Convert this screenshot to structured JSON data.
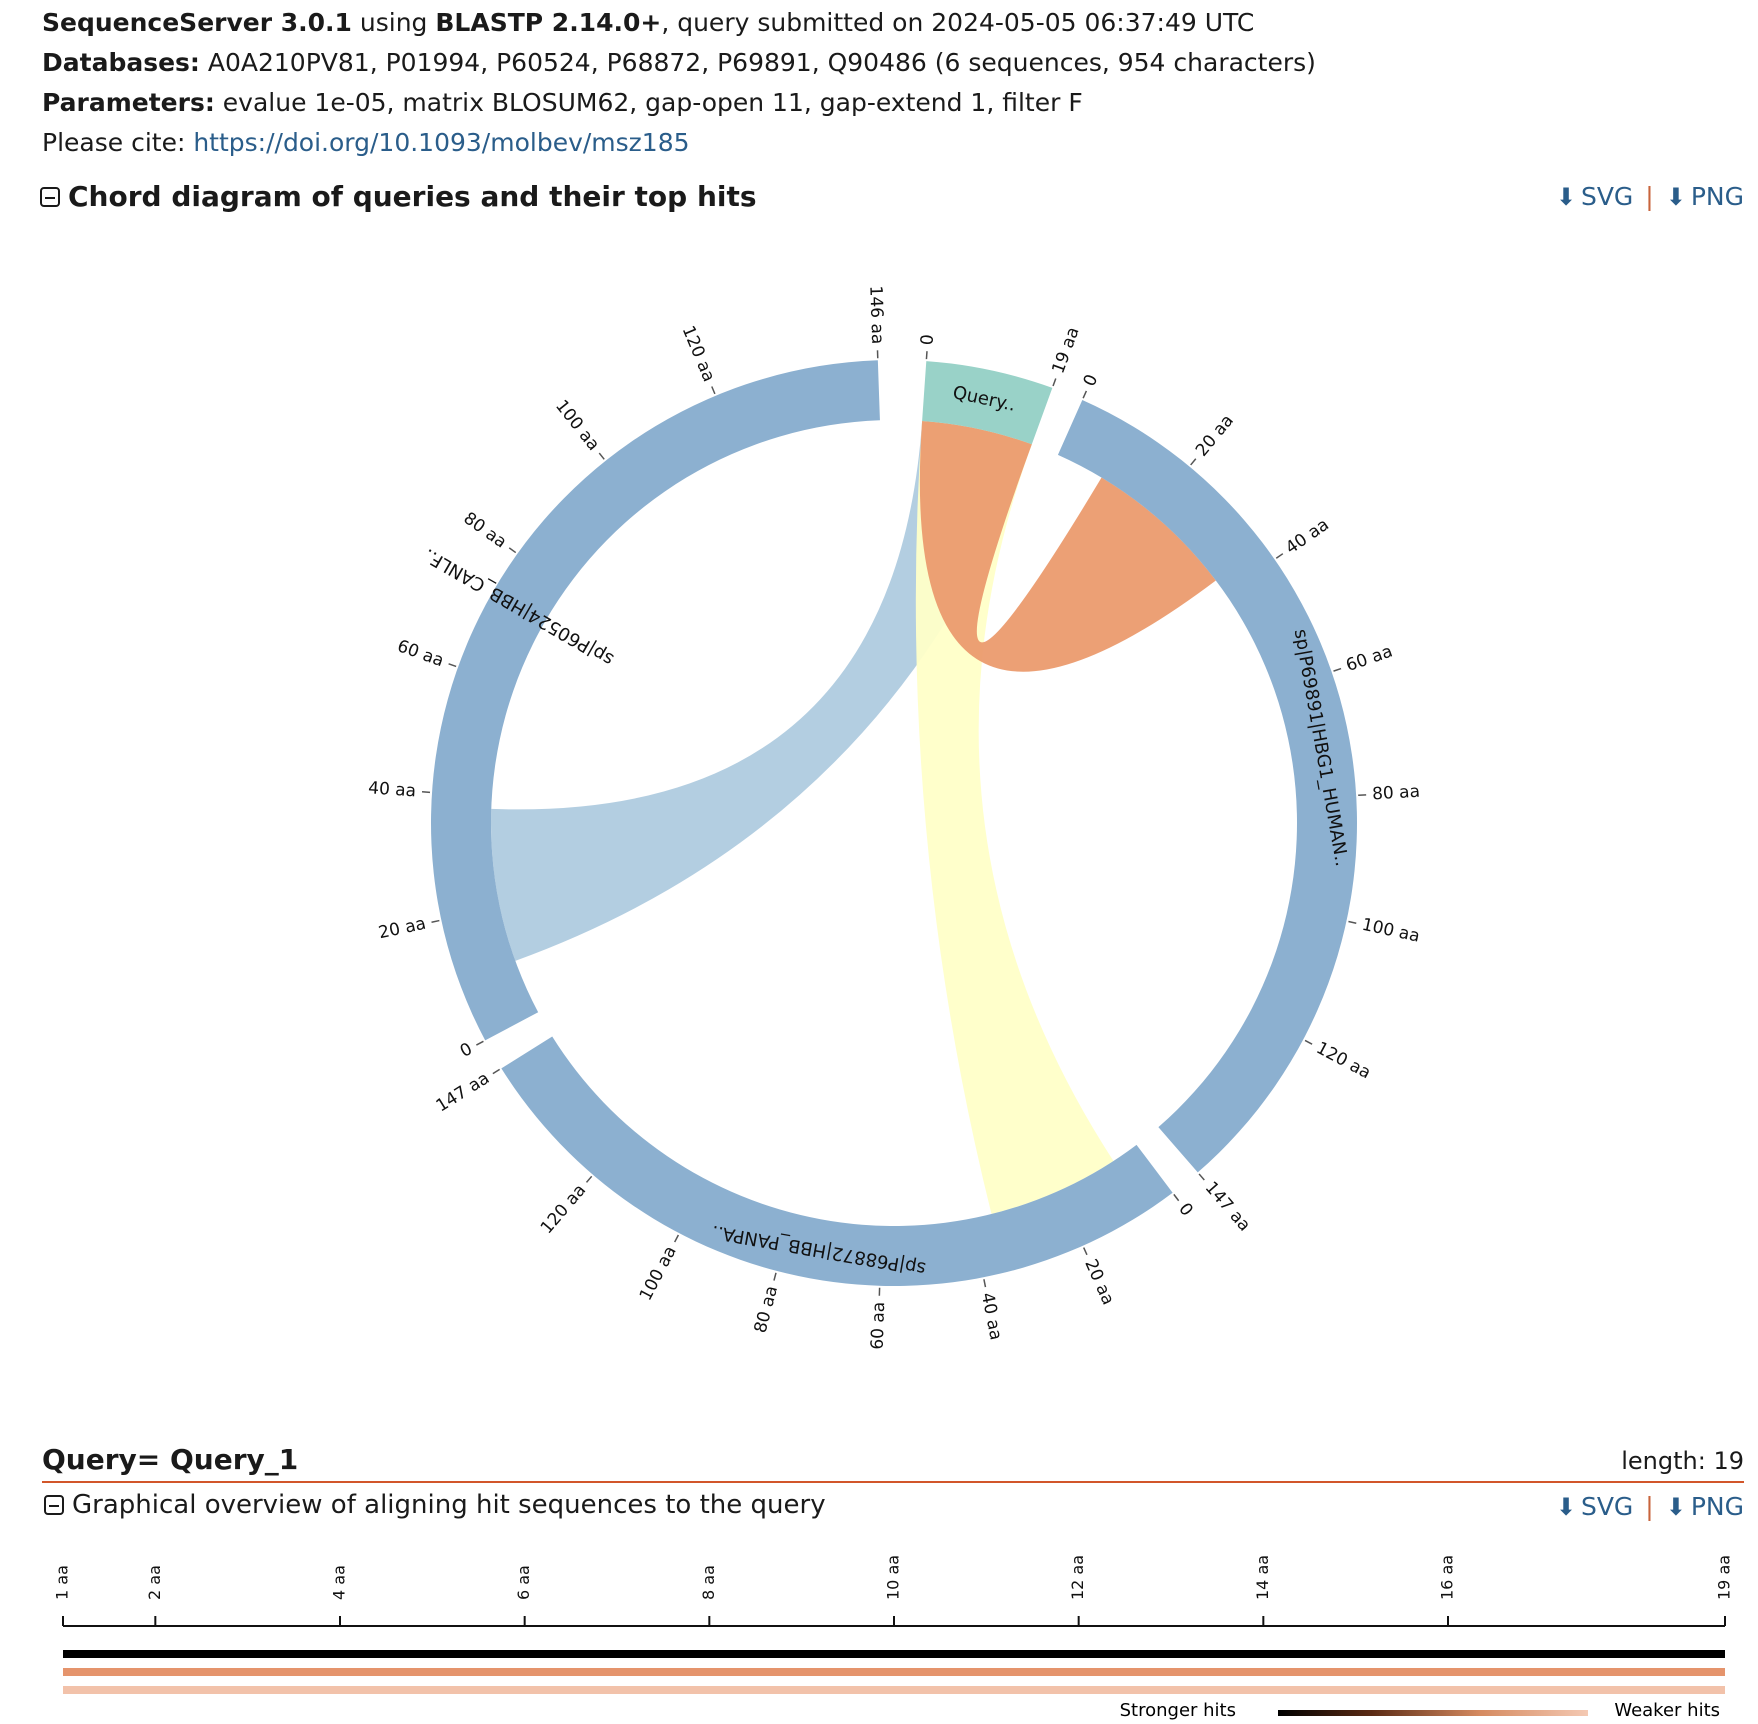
{
  "header": {
    "app_name": "SequenceServer 3.0.1",
    "using_word": "using",
    "program": "BLASTP 2.14.0+",
    "submitted_text": ", query submitted on 2024-05-05 06:37:49 UTC",
    "databases_label": "Databases:",
    "databases_value": "A0A210PV81, P01994, P60524, P68872, P69891, Q90486 (6 sequences, 954 characters)",
    "parameters_label": "Parameters:",
    "parameters_value": "evalue 1e-05, matrix BLOSUM62, gap-open 11, gap-extend 1, filter F",
    "cite_label": "Please cite:",
    "cite_link": "https://doi.org/10.1093/molbev/msz185"
  },
  "chord_section": {
    "title": "Chord diagram of queries and their top hits",
    "svg_label": "SVG",
    "png_label": "PNG",
    "separator": "|",
    "arcs": [
      {
        "label": "Query..",
        "length": 19,
        "color": "#99d2c8"
      },
      {
        "label": "sp|P69891|HBG1_HUMAN..",
        "length": 147,
        "color": "#8cb0d0"
      },
      {
        "label": "sp|P68872|HBB_PANPA..",
        "length": 147,
        "color": "#8cb0d0"
      },
      {
        "label": "sp|P60524|HBB_CANLF..",
        "length": 146,
        "color": "#8cb0d0"
      }
    ],
    "chords": [
      {
        "color": "#eb9b6e",
        "target": 1
      },
      {
        "color": "#ffffc8",
        "target": 2
      },
      {
        "color": "#a6c5dc",
        "target": 3
      }
    ],
    "ticks": {
      "query": [
        "0",
        "19 aa"
      ],
      "hbg1": [
        "0",
        "20 aa",
        "40 aa",
        "60 aa",
        "80 aa",
        "100 aa",
        "120 aa",
        "147 aa"
      ],
      "hbb_panpa": [
        "0",
        "20 aa",
        "40 aa",
        "60 aa",
        "80 aa",
        "100 aa",
        "120 aa",
        "147 aa"
      ],
      "hbb_canlf": [
        "0",
        "20 aa",
        "40 aa",
        "60 aa",
        "80 aa",
        "100 aa",
        "120 aa",
        "146 aa"
      ]
    }
  },
  "query": {
    "title": "Query= Query_1",
    "length_text": "length: 19"
  },
  "overview": {
    "title": "Graphical overview of aligning hit sequences to the query",
    "svg_label": "SVG",
    "png_label": "PNG",
    "separator": "|",
    "ticks": [
      "1 aa",
      "2 aa",
      "4 aa",
      "6 aa",
      "8 aa",
      "10 aa",
      "12 aa",
      "14 aa",
      "16 aa",
      "19 aa"
    ],
    "tick_values": [
      1,
      2,
      4,
      6,
      8,
      10,
      12,
      14,
      16,
      19
    ],
    "hits": [
      {
        "color": "#000000",
        "start": 1,
        "end": 19
      },
      {
        "color": "#e5946c",
        "start": 1,
        "end": 19
      },
      {
        "color": "#f2c2aa",
        "start": 1,
        "end": 19
      }
    ],
    "legend_strong": "Stronger hits",
    "legend_weak": "Weaker hits"
  }
}
